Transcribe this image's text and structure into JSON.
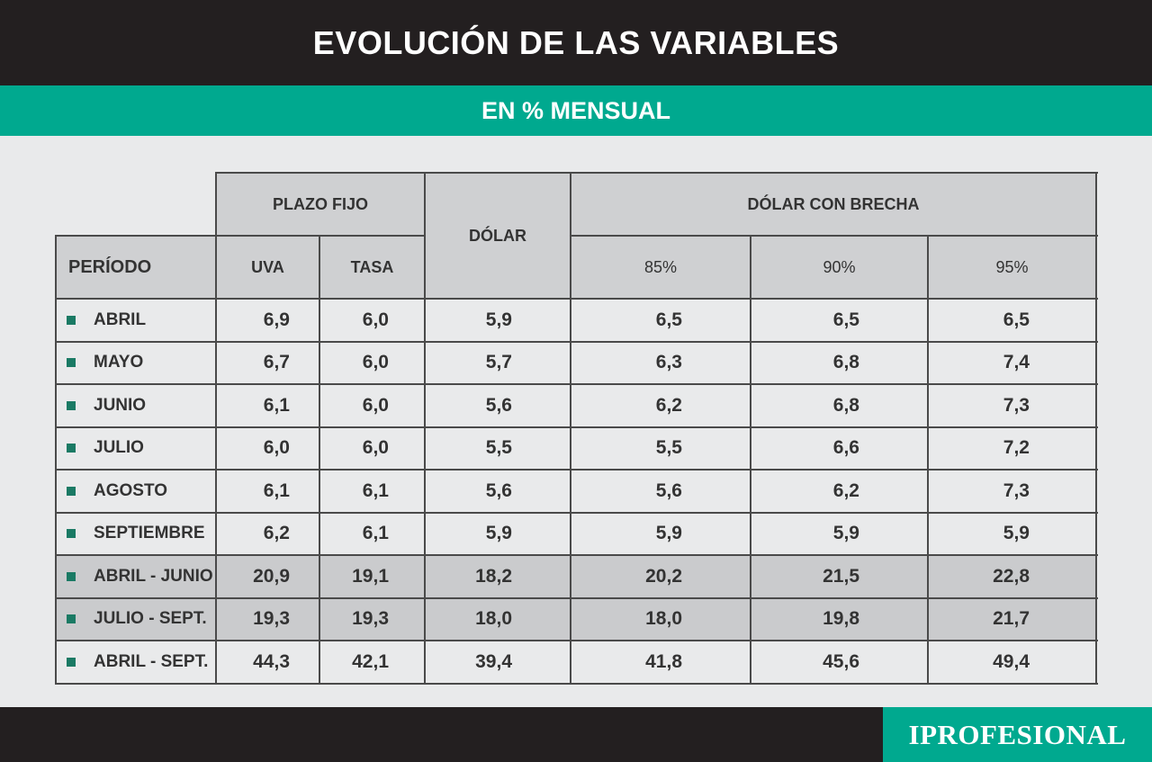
{
  "header": {
    "title": "EVOLUCIÓN DE LAS VARIABLES",
    "subtitle": "EN % MENSUAL"
  },
  "table": {
    "period_label": "PERÍODO",
    "group_plazo_fijo": "PLAZO FIJO",
    "col_uva": "UVA",
    "col_tasa": "TASA",
    "col_dolar": "DÓLAR",
    "group_dolar_brecha": "DÓLAR CON BRECHA",
    "col_85": "85%",
    "col_90": "90%",
    "col_95": "95%"
  },
  "chart_data": {
    "type": "table",
    "title": "EVOLUCIÓN DE LAS VARIABLES",
    "subtitle": "EN % MENSUAL",
    "columns": [
      "PERÍODO",
      "UVA",
      "TASA",
      "DÓLAR",
      "85%",
      "90%",
      "95%"
    ],
    "rows": [
      {
        "period": "ABRIL",
        "uva": "6,9",
        "tasa": "6,0",
        "dolar": "5,9",
        "b85": "6,5",
        "b90": "6,5",
        "b95": "6,5",
        "shaded": false
      },
      {
        "period": "MAYO",
        "uva": "6,7",
        "tasa": "6,0",
        "dolar": "5,7",
        "b85": "6,3",
        "b90": "6,8",
        "b95": "7,4",
        "shaded": false
      },
      {
        "period": "JUNIO",
        "uva": "6,1",
        "tasa": "6,0",
        "dolar": "5,6",
        "b85": "6,2",
        "b90": "6,8",
        "b95": "7,3",
        "shaded": false
      },
      {
        "period": "JULIO",
        "uva": "6,0",
        "tasa": "6,0",
        "dolar": "5,5",
        "b85": "5,5",
        "b90": "6,6",
        "b95": "7,2",
        "shaded": false
      },
      {
        "period": "AGOSTO",
        "uva": "6,1",
        "tasa": "6,1",
        "dolar": "5,6",
        "b85": "5,6",
        "b90": "6,2",
        "b95": "7,3",
        "shaded": false
      },
      {
        "period": "SEPTIEMBRE",
        "uva": "6,2",
        "tasa": "6,1",
        "dolar": "5,9",
        "b85": "5,9",
        "b90": "5,9",
        "b95": "5,9",
        "shaded": false
      },
      {
        "period": "ABRIL - JUNIO",
        "uva": "20,9",
        "tasa": "19,1",
        "dolar": "18,2",
        "b85": "20,2",
        "b90": "21,5",
        "b95": "22,8",
        "shaded": true
      },
      {
        "period": "JULIO - SEPT.",
        "uva": "19,3",
        "tasa": "19,3",
        "dolar": "18,0",
        "b85": "18,0",
        "b90": "19,8",
        "b95": "21,7",
        "shaded": true
      },
      {
        "period": "ABRIL - SEPT.",
        "uva": "44,3",
        "tasa": "42,1",
        "dolar": "39,4",
        "b85": "41,8",
        "b90": "45,6",
        "b95": "49,4",
        "shaded": false
      }
    ]
  },
  "footer": {
    "logo": "IPROFESIONAL"
  },
  "colors": {
    "dark": "#231f20",
    "accent": "#00a98f",
    "bullet": "#1a7a64",
    "header_gray": "#cfd0d2",
    "shade_gray": "#cacbcd",
    "cell_bg": "#e9eaeb"
  }
}
